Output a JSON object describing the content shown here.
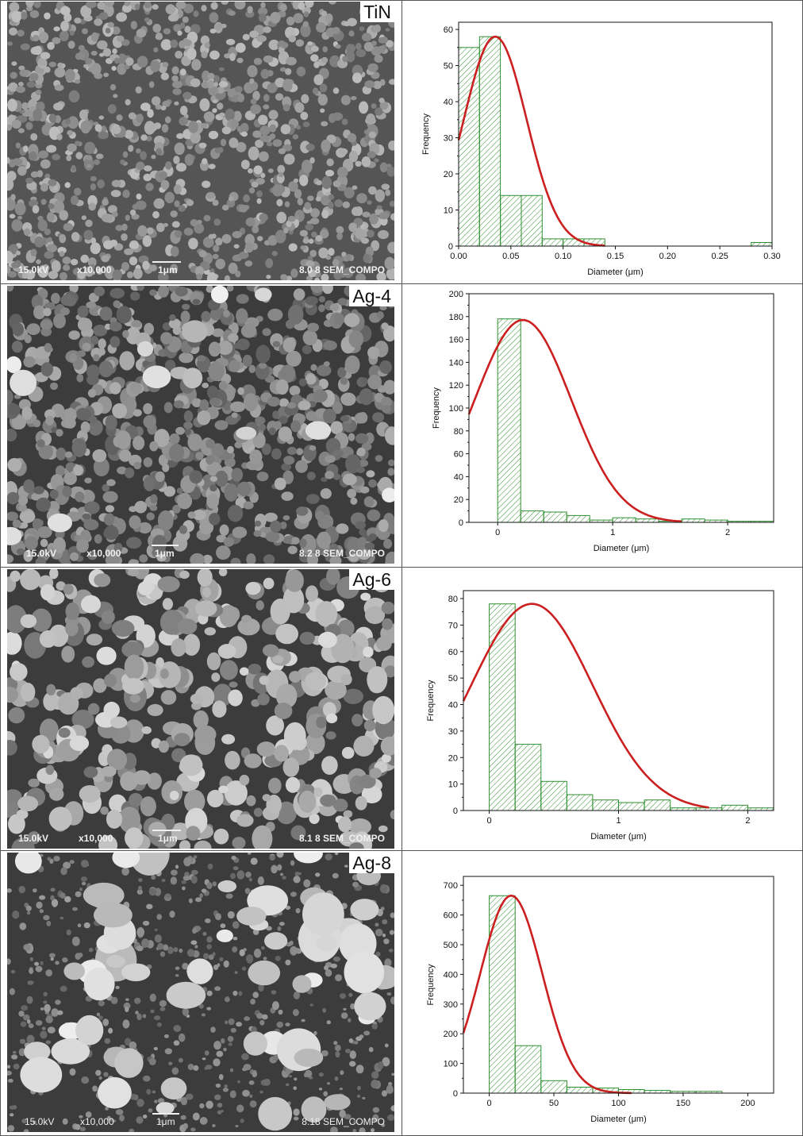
{
  "panels": [
    {
      "label": "TiN",
      "sem": {
        "voltage": "15.0kV",
        "magnification": "x10,000",
        "scale": "1μm",
        "info": "8.0 8 SEM_COMPO",
        "style": "fine"
      },
      "chart_data": {
        "type": "bar",
        "ylabel": "Frequency",
        "xlabel": "Diameter (μm)",
        "xlim": [
          0,
          0.3
        ],
        "ylim": [
          0,
          62
        ],
        "xticks": [
          0.0,
          0.05,
          0.1,
          0.15,
          0.2,
          0.25,
          0.3
        ],
        "xtick_labels": [
          "0.00",
          "0.05",
          "0.10",
          "0.15",
          "0.20",
          "0.25",
          "0.30"
        ],
        "yticks": [
          0,
          10,
          20,
          30,
          40,
          50,
          60
        ],
        "ytick_labels": [
          "0",
          "10",
          "20",
          "30",
          "40",
          "50",
          "60"
        ],
        "bins": [
          {
            "x0": 0.0,
            "x1": 0.02,
            "count": 55
          },
          {
            "x0": 0.02,
            "x1": 0.04,
            "count": 58
          },
          {
            "x0": 0.04,
            "x1": 0.06,
            "count": 14
          },
          {
            "x0": 0.06,
            "x1": 0.08,
            "count": 14
          },
          {
            "x0": 0.08,
            "x1": 0.1,
            "count": 2
          },
          {
            "x0": 0.1,
            "x1": 0.12,
            "count": 2
          },
          {
            "x0": 0.12,
            "x1": 0.14,
            "count": 2
          },
          {
            "x0": 0.28,
            "x1": 0.3,
            "count": 1
          }
        ],
        "fit": {
          "type": "normal",
          "peak": 58,
          "mean": 0.035,
          "sd": 0.03,
          "x_end": 0.14
        },
        "bar_color": "#2f8f2f",
        "fit_color": "#cc1f1f"
      }
    },
    {
      "label": "Ag-4",
      "sem": {
        "voltage": "15.0kV",
        "magnification": "x10,000",
        "scale": "1μm",
        "info": "8.2 8 SEM_COMPO",
        "style": "mixed"
      },
      "chart_data": {
        "type": "bar",
        "ylabel": "Frequency",
        "xlabel": "Diameter (μm)",
        "xlim": [
          -0.25,
          2.4
        ],
        "ylim": [
          0,
          200
        ],
        "xticks": [
          0,
          1,
          2
        ],
        "xtick_labels": [
          "0",
          "1",
          "2"
        ],
        "yticks": [
          0,
          20,
          40,
          60,
          80,
          100,
          120,
          140,
          160,
          180,
          200
        ],
        "ytick_labels": [
          "0",
          "20",
          "40",
          "60",
          "80",
          "100",
          "120",
          "140",
          "160",
          "180",
          "200"
        ],
        "bins": [
          {
            "x0": 0.0,
            "x1": 0.2,
            "count": 178
          },
          {
            "x0": 0.2,
            "x1": 0.4,
            "count": 10
          },
          {
            "x0": 0.4,
            "x1": 0.6,
            "count": 9
          },
          {
            "x0": 0.6,
            "x1": 0.8,
            "count": 6
          },
          {
            "x0": 0.8,
            "x1": 1.0,
            "count": 2
          },
          {
            "x0": 1.0,
            "x1": 1.2,
            "count": 4
          },
          {
            "x0": 1.2,
            "x1": 1.4,
            "count": 3
          },
          {
            "x0": 1.4,
            "x1": 1.6,
            "count": 1
          },
          {
            "x0": 1.6,
            "x1": 1.8,
            "count": 3
          },
          {
            "x0": 1.8,
            "x1": 2.0,
            "count": 2
          },
          {
            "x0": 2.0,
            "x1": 2.2,
            "count": 1
          },
          {
            "x0": 2.2,
            "x1": 2.4,
            "count": 1
          }
        ],
        "fit": {
          "type": "normal",
          "peak": 177,
          "mean": 0.22,
          "sd": 0.42,
          "x_end": 1.6
        },
        "bar_color": "#2f8f2f",
        "fit_color": "#cc1f1f"
      }
    },
    {
      "label": "Ag-6",
      "sem": {
        "voltage": "15.0kV",
        "magnification": "x10,000",
        "scale": "1μm",
        "info": "8.1 8 SEM_COMPO",
        "style": "coarse"
      },
      "chart_data": {
        "type": "bar",
        "ylabel": "Frequency",
        "xlabel": "Diameter (μm)",
        "xlim": [
          -0.2,
          2.2
        ],
        "ylim": [
          0,
          83
        ],
        "xticks": [
          0,
          1,
          2
        ],
        "xtick_labels": [
          "0",
          "1",
          "2"
        ],
        "yticks": [
          0,
          10,
          20,
          30,
          40,
          50,
          60,
          70,
          80
        ],
        "ytick_labels": [
          "0",
          "10",
          "20",
          "30",
          "40",
          "50",
          "60",
          "70",
          "80"
        ],
        "bins": [
          {
            "x0": 0.0,
            "x1": 0.2,
            "count": 78
          },
          {
            "x0": 0.2,
            "x1": 0.4,
            "count": 25
          },
          {
            "x0": 0.4,
            "x1": 0.6,
            "count": 11
          },
          {
            "x0": 0.6,
            "x1": 0.8,
            "count": 6
          },
          {
            "x0": 0.8,
            "x1": 1.0,
            "count": 4
          },
          {
            "x0": 1.0,
            "x1": 1.2,
            "count": 3
          },
          {
            "x0": 1.2,
            "x1": 1.4,
            "count": 4
          },
          {
            "x0": 1.4,
            "x1": 1.6,
            "count": 1
          },
          {
            "x0": 1.6,
            "x1": 1.8,
            "count": 1
          },
          {
            "x0": 1.8,
            "x1": 2.0,
            "count": 2
          },
          {
            "x0": 2.0,
            "x1": 2.2,
            "count": 1
          }
        ],
        "fit": {
          "type": "normal",
          "peak": 78,
          "mean": 0.33,
          "sd": 0.47,
          "x_end": 1.7
        },
        "bar_color": "#2f8f2f",
        "fit_color": "#cc1f1f"
      }
    },
    {
      "label": "Ag-8",
      "sem": {
        "voltage": "15.0kV",
        "magnification": "x10,000",
        "scale": "1μm",
        "info": "8.18  SEM_COMPO",
        "style": "blobs"
      },
      "chart_data": {
        "type": "bar",
        "ylabel": "Frequency",
        "xlabel": "Diameter (μm)",
        "xlim": [
          -20,
          220
        ],
        "ylim": [
          0,
          730
        ],
        "xticks": [
          0,
          50,
          100,
          150,
          200
        ],
        "xtick_labels": [
          "0",
          "50",
          "100",
          "150",
          "200"
        ],
        "yticks": [
          0,
          100,
          200,
          300,
          400,
          500,
          600,
          700
        ],
        "ytick_labels": [
          "0",
          "100",
          "200",
          "300",
          "400",
          "500",
          "600",
          "700"
        ],
        "bins": [
          {
            "x0": 0,
            "x1": 20,
            "count": 665
          },
          {
            "x0": 20,
            "x1": 40,
            "count": 160
          },
          {
            "x0": 40,
            "x1": 60,
            "count": 42
          },
          {
            "x0": 60,
            "x1": 80,
            "count": 20
          },
          {
            "x0": 80,
            "x1": 100,
            "count": 17
          },
          {
            "x0": 100,
            "x1": 120,
            "count": 12
          },
          {
            "x0": 120,
            "x1": 140,
            "count": 9
          },
          {
            "x0": 140,
            "x1": 160,
            "count": 6
          },
          {
            "x0": 160,
            "x1": 180,
            "count": 6
          }
        ],
        "fit": {
          "type": "normal",
          "peak": 665,
          "mean": 17,
          "sd": 24,
          "x_end": 110
        },
        "bar_color": "#2f8f2f",
        "fit_color": "#cc1f1f"
      }
    }
  ]
}
